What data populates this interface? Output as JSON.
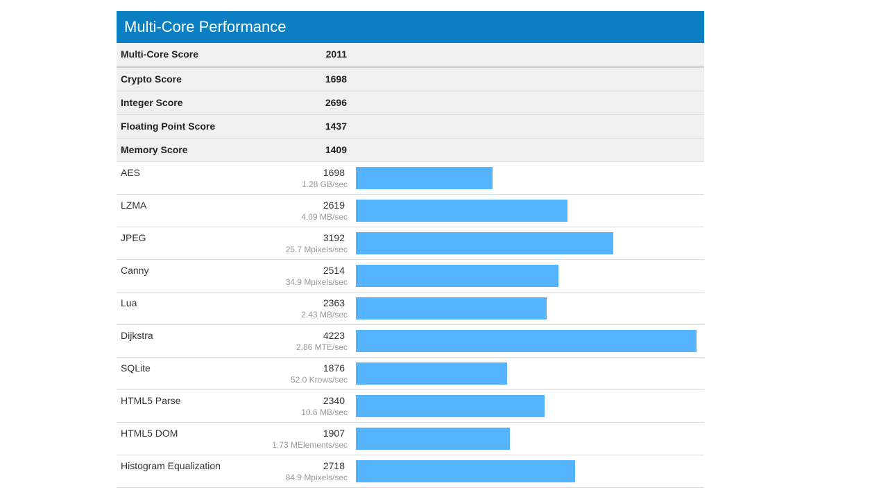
{
  "title": "Multi-Core Performance",
  "summary": [
    {
      "label": "Multi-Core Score",
      "value": "2011"
    },
    {
      "label": "Crypto Score",
      "value": "1698"
    },
    {
      "label": "Integer Score",
      "value": "2696"
    },
    {
      "label": "Floating Point Score",
      "value": "1437"
    },
    {
      "label": "Memory Score",
      "value": "1409"
    }
  ],
  "colors": {
    "header": "#0a7fc1",
    "bar": "#55b4fb",
    "summary_bg": "#f0f0f0"
  },
  "chart_data": {
    "type": "bar",
    "orientation": "horizontal",
    "title": "Multi-Core Performance",
    "categories": [
      "AES",
      "LZMA",
      "JPEG",
      "Canny",
      "Lua",
      "Dijkstra",
      "SQLite",
      "HTML5 Parse",
      "HTML5 DOM",
      "Histogram Equalization"
    ],
    "values": [
      1698,
      2619,
      3192,
      2514,
      2363,
      4223,
      1876,
      2340,
      1907,
      2718
    ],
    "value_labels": [
      "1698",
      "2619",
      "3192",
      "2514",
      "2363",
      "4223",
      "1876",
      "2340",
      "1907",
      "2718"
    ],
    "rates": [
      "1.28 GB/sec",
      "4.09 MB/sec",
      "25.7 Mpixels/sec",
      "34.9 Mpixels/sec",
      "2.43 MB/sec",
      "2.86 MTE/sec",
      "52.0 Krows/sec",
      "10.6 MB/sec",
      "1.73 MElements/sec",
      "84.9 Mpixels/sec"
    ],
    "xlim": [
      0,
      4223
    ],
    "grid": false,
    "legend": "none"
  }
}
